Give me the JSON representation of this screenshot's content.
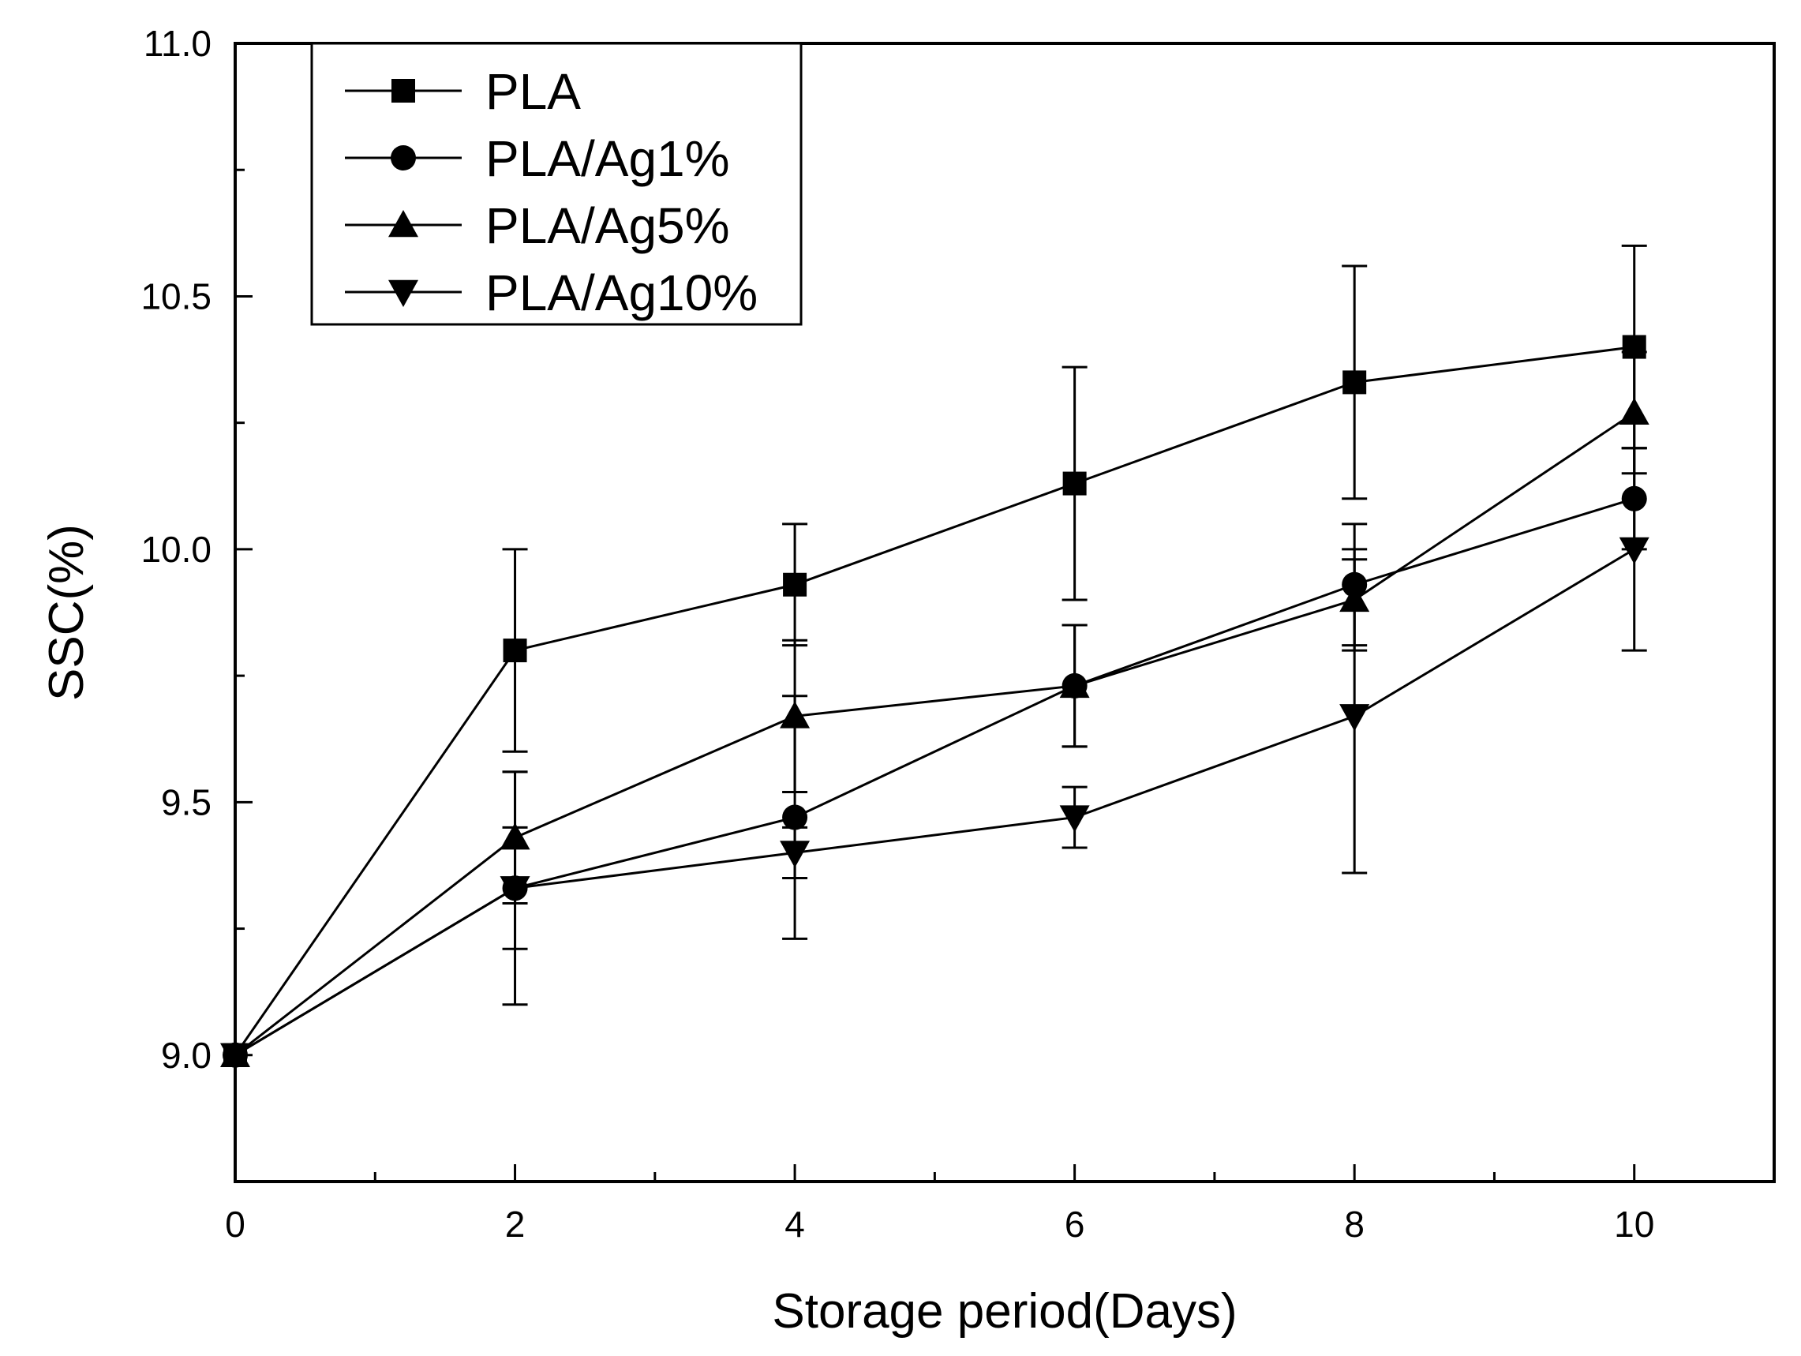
{
  "chart_data": {
    "type": "line",
    "title": "",
    "xlabel": "Storage period(Days)",
    "ylabel": "SSC(%)",
    "xlim": [
      0,
      11
    ],
    "ylim": [
      8.75,
      11.0
    ],
    "x_ticks": [
      0,
      2,
      4,
      6,
      8,
      10
    ],
    "x_tick_labels": [
      "0",
      "2",
      "4",
      "6",
      "8",
      "10"
    ],
    "y_ticks": [
      9.0,
      9.5,
      10.0,
      10.5,
      11.0
    ],
    "y_tick_labels": [
      "9.0",
      "9.5",
      "10.0",
      "10.5",
      "11.0"
    ],
    "legend_position": "top-left",
    "line_color": "#000000",
    "x": [
      0,
      2,
      4,
      6,
      8,
      10
    ],
    "series": [
      {
        "name": "PLA",
        "marker": "square",
        "values": [
          9.0,
          9.8,
          9.93,
          10.13,
          10.33,
          10.4
        ],
        "errors": [
          0,
          0.2,
          0.12,
          0.23,
          0.23,
          0.2
        ]
      },
      {
        "name": "PLA/Ag1%",
        "marker": "circle",
        "values": [
          9.0,
          9.33,
          9.47,
          9.73,
          9.93,
          10.1
        ],
        "errors": [
          0,
          0.23,
          0.24,
          0.12,
          0.12,
          0.1
        ]
      },
      {
        "name": "PLA/Ag5%",
        "marker": "triangle-up",
        "values": [
          9.0,
          9.43,
          9.67,
          9.73,
          9.9,
          10.27
        ],
        "errors": [
          0,
          0.13,
          0.15,
          0.12,
          0.1,
          0.12
        ]
      },
      {
        "name": "PLA/Ag10%",
        "marker": "triangle-down",
        "values": [
          9.0,
          9.33,
          9.4,
          9.47,
          9.67,
          10.0
        ],
        "errors": [
          0,
          0.12,
          0.05,
          0.06,
          0.31,
          0.2
        ]
      }
    ]
  }
}
